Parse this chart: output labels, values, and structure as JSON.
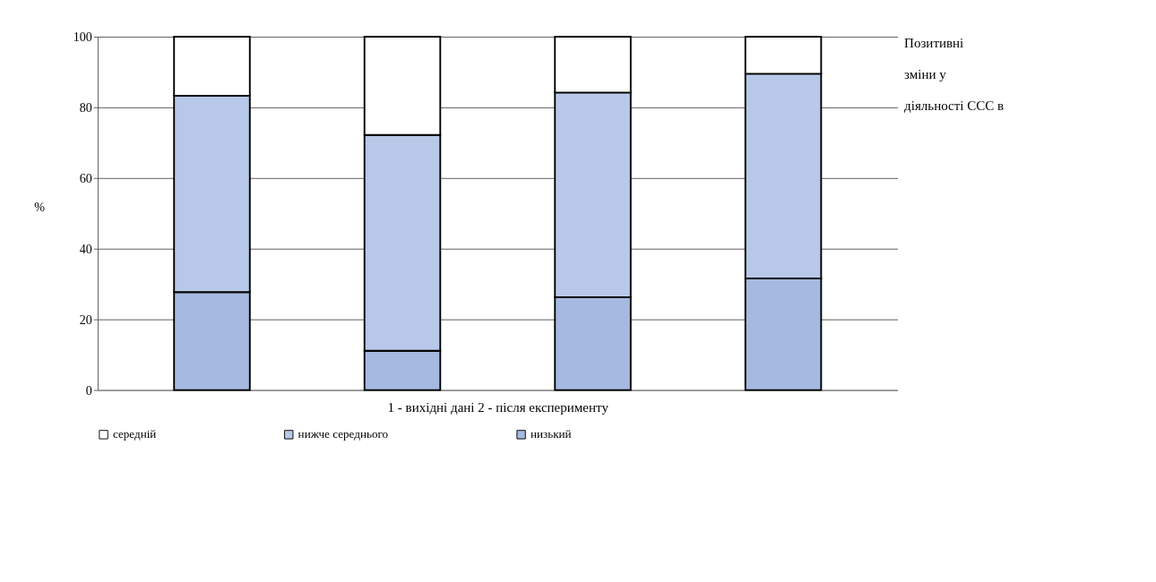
{
  "chart_data": {
    "type": "bar",
    "stacked": true,
    "ylabel": "%",
    "xlabel": "1 - вихідні дані 2 - після експерименту",
    "categories": [
      null,
      null,
      null,
      null
    ],
    "series": [
      {
        "name": "низький",
        "color": "#a6b9e0",
        "values": [
          27.7,
          11.1,
          26.3,
          31.6
        ]
      },
      {
        "name": "нижче середнього",
        "color": "#b8c8e8",
        "values": [
          55.6,
          61.1,
          57.9,
          57.9
        ]
      },
      {
        "name": "середній",
        "color": "#ffffff",
        "values": [
          16.7,
          27.8,
          15.8,
          10.5
        ]
      }
    ],
    "ylim": [
      0,
      100
    ],
    "yticks": [
      0,
      20,
      40,
      60,
      80,
      100
    ],
    "grid": "y",
    "legend": "bottom",
    "annotations": [
      "Позитивні\nзміни у\nдіяльності ССС в"
    ]
  }
}
